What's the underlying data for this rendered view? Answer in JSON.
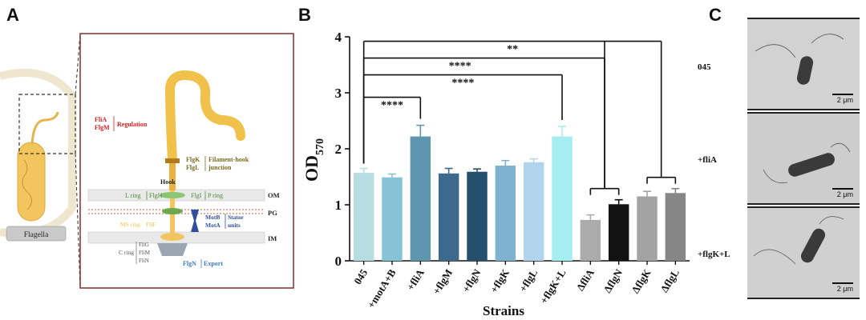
{
  "panel_labels": {
    "a": "A",
    "b": "B",
    "c": "C"
  },
  "panel_a": {
    "cell_label": "Flagella",
    "regulation": {
      "genes": [
        "FliA",
        "FlgM"
      ],
      "label": "Regulation"
    },
    "junction": {
      "genes": [
        "FlgK",
        "FlgL"
      ],
      "label_line1": "Filament-hook",
      "label_line2": "junction"
    },
    "hook_label": "Hook",
    "l_ring": "L ring",
    "flgH": "FlgH",
    "flgI": "FlgI",
    "p_ring": "P ring",
    "om": "OM",
    "pg": "PG",
    "im": "IM",
    "stator": {
      "genes": [
        "MotB",
        "MotA"
      ],
      "label_line1": "Stator",
      "label_line2": "units"
    },
    "ms_ring": "MS ring",
    "flif": "FliF",
    "c_ring": "C ring",
    "c_ring_genes": [
      "FliG",
      "FliM",
      "FliN"
    ],
    "export": {
      "gene": "FlgN",
      "label": "Export"
    }
  },
  "chart_data": {
    "type": "bar",
    "ylabel": "OD",
    "ylabel_sub": "570",
    "xlabel": "Strains",
    "ylim": [
      0,
      4
    ],
    "yticks": [
      0,
      1,
      2,
      3,
      4
    ],
    "categories": [
      "045",
      "+motA+B",
      "+fliA",
      "+flgM",
      "+flgN",
      "+flgK",
      "+flgL",
      "+flgK+L",
      "ΔfliA",
      "ΔflgN",
      "ΔflgK",
      "ΔflgL"
    ],
    "values": [
      1.57,
      1.49,
      2.22,
      1.56,
      1.59,
      1.7,
      1.76,
      2.22,
      0.73,
      1.01,
      1.15,
      1.21
    ],
    "errors": [
      0.08,
      0.06,
      0.2,
      0.09,
      0.05,
      0.09,
      0.06,
      0.18,
      0.09,
      0.08,
      0.09,
      0.08
    ],
    "colors": [
      "#b5dde2",
      "#84c4d6",
      "#5d96ae",
      "#3b6a8e",
      "#24506d",
      "#7fb1d1",
      "#b0d4ec",
      "#a6edf1",
      "#ababab",
      "#121212",
      "#a3a3a3",
      "#868686"
    ],
    "significance": [
      {
        "label": "**",
        "from": "045",
        "to": [
          "ΔfliA",
          "ΔflgN",
          "ΔflgK",
          "ΔflgL"
        ],
        "y": 3.92
      },
      {
        "label": "****",
        "from": "045",
        "to": [
          "ΔfliA",
          "ΔflgN"
        ],
        "y": 3.62
      },
      {
        "label": "****",
        "from": "045",
        "to": [
          "+flgK+L"
        ],
        "y": 3.32
      },
      {
        "label": "****",
        "from": "045",
        "to": [
          "+fliA"
        ],
        "y": 2.92
      }
    ]
  },
  "panel_c": {
    "images": [
      {
        "label": "045",
        "scale": "2 μm"
      },
      {
        "label": "+fliA",
        "scale": "2 μm"
      },
      {
        "label": "+flgK+L",
        "scale": "2 μm"
      }
    ]
  }
}
